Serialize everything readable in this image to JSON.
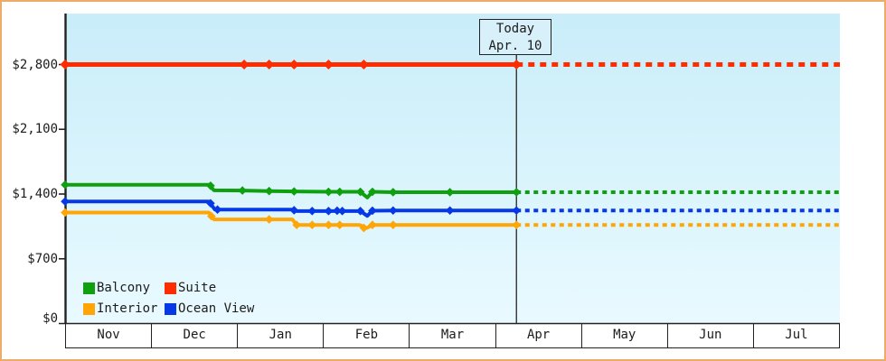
{
  "window": {
    "border_color": "#EFAC69",
    "background": "#FFFFFF"
  },
  "chart_data": {
    "type": "line",
    "title": "",
    "description": "Cruise cabin price history by category; solid lines are observed prices with diamond markers, dotted lines are the projection after today",
    "today_label": {
      "line1": "Today",
      "line2": "Apr. 10"
    },
    "today_x": 5.243,
    "x_axis": {
      "months": [
        "Nov",
        "Dec",
        "Jan",
        "Feb",
        "Mar",
        "Apr",
        "May",
        "Jun",
        "Jul"
      ],
      "range_months": [
        0,
        9
      ]
    },
    "y_axis": {
      "ticks": [
        {
          "label": "$0",
          "value": 0
        },
        {
          "label": "$700",
          "value": 700
        },
        {
          "label": "$1,400",
          "value": 1400
        },
        {
          "label": "$2,100",
          "value": 2100
        },
        {
          "label": "$2,800",
          "value": 2800
        }
      ],
      "ylim": [
        0,
        2900
      ]
    },
    "plot_background_top": "#C9EDF9",
    "plot_background_bottom": "#E9FAFF",
    "grid": "off",
    "legend_position": "bottom-left-inside",
    "legend": [
      {
        "label": "Balcony",
        "color": "#0EA00E"
      },
      {
        "label": "Suite",
        "color": "#FF2C00"
      },
      {
        "label": "Interior",
        "color": "#FFA506"
      },
      {
        "label": "Ocean View",
        "color": "#0638E6"
      }
    ],
    "series": [
      {
        "id": "suite",
        "name": "Suite",
        "color": "#FF2C00",
        "width": 5,
        "solid": [
          [
            0,
            2800
          ],
          [
            5.243,
            2800
          ]
        ],
        "markers": [
          [
            0,
            2800
          ],
          [
            2.08,
            2800
          ],
          [
            2.37,
            2800
          ],
          [
            2.66,
            2800
          ],
          [
            3.06,
            2800
          ],
          [
            3.47,
            2800
          ],
          [
            5.243,
            2800
          ]
        ],
        "dotted": [
          [
            5.243,
            2800
          ],
          [
            9,
            2800
          ]
        ]
      },
      {
        "id": "balcony",
        "name": "Balcony",
        "color": "#0EA00E",
        "width": 4,
        "solid": [
          [
            0,
            1500
          ],
          [
            1.67,
            1500
          ],
          [
            1.73,
            1440
          ],
          [
            2.06,
            1438
          ],
          [
            2.37,
            1432
          ],
          [
            2.66,
            1428
          ],
          [
            3.06,
            1424
          ],
          [
            3.19,
            1424
          ],
          [
            3.43,
            1424
          ],
          [
            3.51,
            1362
          ],
          [
            3.57,
            1424
          ],
          [
            3.81,
            1420
          ],
          [
            4.47,
            1420
          ],
          [
            5.243,
            1420
          ]
        ],
        "markers": [
          [
            0,
            1500
          ],
          [
            1.69,
            1490
          ],
          [
            2.06,
            1438
          ],
          [
            2.37,
            1432
          ],
          [
            2.66,
            1428
          ],
          [
            3.06,
            1424
          ],
          [
            3.19,
            1424
          ],
          [
            3.43,
            1424
          ],
          [
            3.57,
            1424
          ],
          [
            3.81,
            1420
          ],
          [
            4.47,
            1420
          ],
          [
            5.243,
            1420
          ]
        ],
        "dotted": [
          [
            5.243,
            1420
          ],
          [
            9,
            1420
          ]
        ]
      },
      {
        "id": "ocean-view",
        "name": "Ocean View",
        "color": "#0638E6",
        "width": 4,
        "solid": [
          [
            0,
            1320
          ],
          [
            1.67,
            1320
          ],
          [
            1.74,
            1232
          ],
          [
            2.64,
            1232
          ],
          [
            2.69,
            1216
          ],
          [
            3.43,
            1216
          ],
          [
            3.51,
            1164
          ],
          [
            3.57,
            1220
          ],
          [
            3.81,
            1222
          ],
          [
            5.243,
            1222
          ]
        ],
        "markers": [
          [
            0,
            1320
          ],
          [
            1.69,
            1300
          ],
          [
            1.77,
            1232
          ],
          [
            2.66,
            1225
          ],
          [
            2.87,
            1216
          ],
          [
            3.06,
            1216
          ],
          [
            3.16,
            1220
          ],
          [
            3.22,
            1216
          ],
          [
            3.43,
            1216
          ],
          [
            3.57,
            1220
          ],
          [
            3.81,
            1222
          ],
          [
            4.47,
            1222
          ],
          [
            5.243,
            1222
          ]
        ],
        "dotted": [
          [
            5.243,
            1222
          ],
          [
            9,
            1222
          ]
        ]
      },
      {
        "id": "interior",
        "name": "Interior",
        "color": "#FFA506",
        "width": 4,
        "solid": [
          [
            0,
            1200
          ],
          [
            1.67,
            1200
          ],
          [
            1.73,
            1126
          ],
          [
            2.64,
            1126
          ],
          [
            2.69,
            1066
          ],
          [
            3.42,
            1066
          ],
          [
            3.5,
            1032
          ],
          [
            3.58,
            1066
          ],
          [
            5.243,
            1066
          ]
        ],
        "markers": [
          [
            0,
            1200
          ],
          [
            1.7,
            1160
          ],
          [
            2.37,
            1126
          ],
          [
            2.69,
            1066
          ],
          [
            2.87,
            1066
          ],
          [
            3.06,
            1066
          ],
          [
            3.19,
            1066
          ],
          [
            3.47,
            1034
          ],
          [
            3.57,
            1066
          ],
          [
            3.81,
            1066
          ],
          [
            5.243,
            1066
          ]
        ],
        "dotted": [
          [
            5.243,
            1066
          ],
          [
            9,
            1066
          ]
        ]
      }
    ]
  }
}
